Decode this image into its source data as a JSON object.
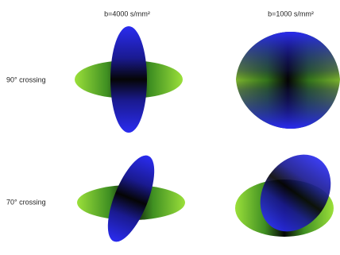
{
  "columns": [
    "b=4000 s/mm²",
    "b=1000 s/mm²"
  ],
  "rows": [
    "90° crossing",
    "70° crossing"
  ]
}
